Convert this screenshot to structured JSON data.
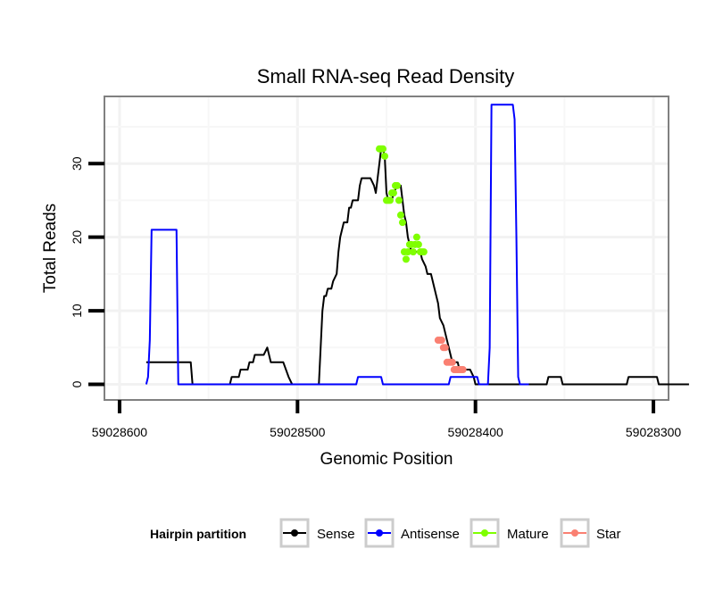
{
  "chart_data": {
    "type": "line",
    "title": "Small RNA-seq Read Density",
    "xlabel": "Genomic Position",
    "ylabel": "Total Reads",
    "xlim": [
      59028608,
      59028292
    ],
    "ylim": [
      -2,
      39
    ],
    "xticks": [
      59028600,
      59028500,
      59028400,
      59028300
    ],
    "xtick_labels": [
      "59028600",
      "59028500",
      "59028400",
      "59028300"
    ],
    "yticks": [
      0,
      10,
      20,
      30
    ],
    "ytick_labels": [
      "0",
      "10",
      "20",
      "30"
    ],
    "grid": true,
    "legend": {
      "title": "Hairpin partition",
      "placement": "bottom",
      "entries": [
        {
          "name": "Sense",
          "color": "#000000"
        },
        {
          "name": "Antisense",
          "color": "#0000ff"
        },
        {
          "name": "Mature",
          "color": "#7fff00"
        },
        {
          "name": "Star",
          "color": "#fa8072"
        }
      ]
    },
    "series": [
      {
        "name": "Sense",
        "kind": "line",
        "color": "#000000",
        "points": [
          [
            59028585,
            3
          ],
          [
            59028575,
            3
          ],
          [
            59028560,
            3
          ],
          [
            59028559,
            0
          ],
          [
            59028548,
            0
          ],
          [
            59028538,
            0
          ],
          [
            59028537,
            1
          ],
          [
            59028533,
            1
          ],
          [
            59028532,
            2
          ],
          [
            59028528,
            2
          ],
          [
            59028527,
            3
          ],
          [
            59028525,
            3
          ],
          [
            59028524,
            4
          ],
          [
            59028519,
            4
          ],
          [
            59028517,
            5
          ],
          [
            59028515,
            3
          ],
          [
            59028508,
            3
          ],
          [
            59028505,
            1
          ],
          [
            59028503,
            0
          ],
          [
            59028488,
            0
          ],
          [
            59028486,
            10
          ],
          [
            59028485,
            12
          ],
          [
            59028484,
            12
          ],
          [
            59028483,
            13
          ],
          [
            59028481,
            13
          ],
          [
            59028480,
            14
          ],
          [
            59028478,
            15
          ],
          [
            59028477,
            18
          ],
          [
            59028476,
            20
          ],
          [
            59028475,
            21
          ],
          [
            59028474,
            22
          ],
          [
            59028472,
            22
          ],
          [
            59028471,
            24
          ],
          [
            59028470,
            24
          ],
          [
            59028469,
            25
          ],
          [
            59028466,
            25
          ],
          [
            59028465,
            27
          ],
          [
            59028464,
            28
          ],
          [
            59028459,
            28
          ],
          [
            59028457,
            27
          ],
          [
            59028456,
            26
          ],
          [
            59028454,
            30
          ],
          [
            59028453,
            32
          ],
          [
            59028452,
            32
          ],
          [
            59028451,
            31
          ],
          [
            59028450,
            26
          ],
          [
            59028449,
            25
          ],
          [
            59028447,
            25
          ],
          [
            59028446,
            26
          ],
          [
            59028444,
            27
          ],
          [
            59028442,
            27
          ],
          [
            59028441,
            25
          ],
          [
            59028440,
            23
          ],
          [
            59028439,
            22
          ],
          [
            59028438,
            20
          ],
          [
            59028437,
            19
          ],
          [
            59028436,
            18
          ],
          [
            59028431,
            18
          ],
          [
            59028430,
            17
          ],
          [
            59028428,
            16
          ],
          [
            59028427,
            15
          ],
          [
            59028425,
            15
          ],
          [
            59028424,
            14
          ],
          [
            59028422,
            12
          ],
          [
            59028421,
            11
          ],
          [
            59028420,
            9
          ],
          [
            59028418,
            8
          ],
          [
            59028417,
            7
          ],
          [
            59028416,
            6
          ],
          [
            59028415,
            5
          ],
          [
            59028414,
            4
          ],
          [
            59028413,
            3
          ],
          [
            59028410,
            3
          ],
          [
            59028409,
            2
          ],
          [
            59028403,
            2
          ],
          [
            59028401,
            1
          ],
          [
            59028400,
            0
          ],
          [
            59028360,
            0
          ],
          [
            59028359,
            1
          ],
          [
            59028352,
            1
          ],
          [
            59028351,
            0
          ],
          [
            59028315,
            0
          ],
          [
            59028314,
            1
          ],
          [
            59028298,
            1
          ],
          [
            59028297,
            0
          ],
          [
            59028280,
            0
          ]
        ]
      },
      {
        "name": "Antisense",
        "kind": "line",
        "color": "#0000ff",
        "points": [
          [
            59028585,
            0
          ],
          [
            59028584,
            1
          ],
          [
            59028583,
            6
          ],
          [
            59028582,
            21
          ],
          [
            59028568,
            21
          ],
          [
            59028567,
            0
          ],
          [
            59028504,
            0
          ],
          [
            59028467,
            0
          ],
          [
            59028466,
            1
          ],
          [
            59028453,
            1
          ],
          [
            59028452,
            0
          ],
          [
            59028415,
            0
          ],
          [
            59028414,
            1
          ],
          [
            59028399,
            1
          ],
          [
            59028398,
            0
          ],
          [
            59028393,
            0
          ],
          [
            59028392,
            5
          ],
          [
            59028391,
            38
          ],
          [
            59028379,
            38
          ],
          [
            59028378,
            36
          ],
          [
            59028377,
            20
          ],
          [
            59028376,
            1
          ],
          [
            59028375,
            0
          ],
          [
            59028370,
            0
          ]
        ]
      },
      {
        "name": "Mature",
        "kind": "points",
        "color": "#7fff00",
        "points": [
          [
            59028454,
            32
          ],
          [
            59028453,
            32
          ],
          [
            59028452,
            32
          ],
          [
            59028451,
            31
          ],
          [
            59028450,
            25
          ],
          [
            59028449,
            25
          ],
          [
            59028448,
            25
          ],
          [
            59028447,
            26
          ],
          [
            59028446,
            26
          ],
          [
            59028445,
            27
          ],
          [
            59028444,
            27
          ],
          [
            59028443,
            25
          ],
          [
            59028442,
            23
          ],
          [
            59028441,
            22
          ],
          [
            59028440,
            18
          ],
          [
            59028439,
            17
          ],
          [
            59028438,
            18
          ],
          [
            59028437,
            19
          ],
          [
            59028436,
            19
          ],
          [
            59028435,
            18
          ],
          [
            59028434,
            19
          ],
          [
            59028433,
            20
          ],
          [
            59028432,
            19
          ],
          [
            59028431,
            18
          ],
          [
            59028430,
            18
          ],
          [
            59028429,
            18
          ]
        ]
      },
      {
        "name": "Star",
        "kind": "points",
        "color": "#fa8072",
        "points": [
          [
            59028421,
            6
          ],
          [
            59028420,
            6
          ],
          [
            59028419,
            6
          ],
          [
            59028418,
            5
          ],
          [
            59028417,
            5
          ],
          [
            59028416,
            3
          ],
          [
            59028415,
            3
          ],
          [
            59028414,
            3
          ],
          [
            59028413,
            3
          ],
          [
            59028412,
            2
          ],
          [
            59028411,
            2
          ],
          [
            59028410,
            2
          ],
          [
            59028409,
            2
          ],
          [
            59028408,
            2
          ],
          [
            59028407,
            2
          ]
        ]
      }
    ]
  }
}
